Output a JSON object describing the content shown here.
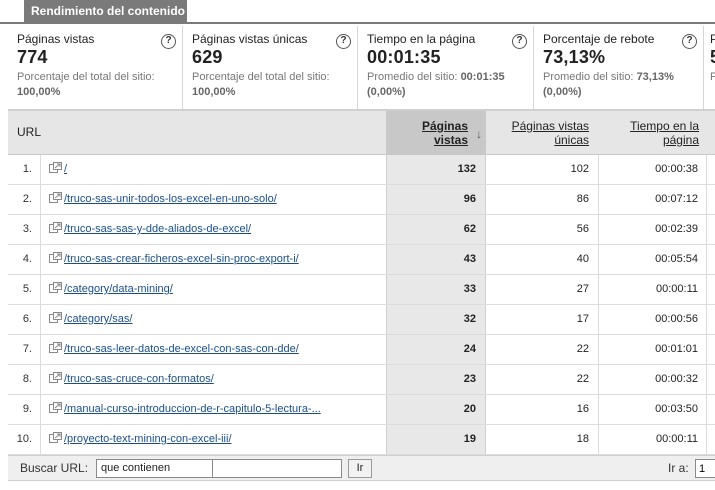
{
  "tab": {
    "title": "Rendimiento del contenido"
  },
  "metrics": [
    {
      "label": "Páginas vistas",
      "value": "774",
      "sub1_prefix": "Porcentaje del total del sitio:",
      "sub2": "100,00%"
    },
    {
      "label": "Páginas vistas únicas",
      "value": "629",
      "sub1_prefix": "Porcentaje del total del sitio:",
      "sub2": "100,00%"
    },
    {
      "label": "Tiempo en la página",
      "value": "00:01:35",
      "sub1_prefix": "Promedio del sitio:",
      "sub1_value": "00:01:35",
      "sub2": "(0,00%)"
    },
    {
      "label": "Porcentaje de rebote",
      "value": "73,13%",
      "sub1_prefix": "Promedio del sitio:",
      "sub1_value": "73,13%",
      "sub2": "(0,00%)"
    },
    {
      "label": "P",
      "value": "5",
      "sub1_prefix": "P",
      "sub2": ""
    }
  ],
  "help_glyph": "?",
  "table": {
    "headers": {
      "url": "URL",
      "pageviews_line1": "Páginas",
      "pageviews_line2": "vistas",
      "unique_line1": "Páginas vistas",
      "unique_line2": "únicas",
      "time_line1": "Tiempo en la",
      "time_line2": "página"
    },
    "sort_indicator": "↓",
    "rows": [
      {
        "idx": "1.",
        "url": "/",
        "pv": "132",
        "uv": "102",
        "t": "00:00:38"
      },
      {
        "idx": "2.",
        "url": "/truco-sas-unir-todos-los-excel-en-uno-solo/",
        "pv": "96",
        "uv": "86",
        "t": "00:07:12"
      },
      {
        "idx": "3.",
        "url": "/truco-sas-sas-y-dde-aliados-de-excel/",
        "pv": "62",
        "uv": "56",
        "t": "00:02:39"
      },
      {
        "idx": "4.",
        "url": "/truco-sas-crear-ficheros-excel-sin-proc-export-i/",
        "pv": "43",
        "uv": "40",
        "t": "00:05:54"
      },
      {
        "idx": "5.",
        "url": "/category/data-mining/",
        "pv": "33",
        "uv": "27",
        "t": "00:00:11"
      },
      {
        "idx": "6.",
        "url": "/category/sas/",
        "pv": "32",
        "uv": "17",
        "t": "00:00:56"
      },
      {
        "idx": "7.",
        "url": "/truco-sas-leer-datos-de-excel-con-sas-con-dde/",
        "pv": "24",
        "uv": "22",
        "t": "00:01:01"
      },
      {
        "idx": "8.",
        "url": "/truco-sas-cruce-con-formatos/",
        "pv": "23",
        "uv": "22",
        "t": "00:00:32"
      },
      {
        "idx": "9.",
        "url": "/manual-curso-introduccion-de-r-capitulo-5-lectura-...",
        "pv": "20",
        "uv": "16",
        "t": "00:03:50"
      },
      {
        "idx": "10.",
        "url": "/proyecto-text-mining-con-excel-iii/",
        "pv": "19",
        "uv": "18",
        "t": "00:00:11"
      }
    ]
  },
  "footer": {
    "search_label": "Buscar URL:",
    "filter_selected": "que contienen",
    "search_value": "",
    "button_label": "Ir",
    "goto_label": "Ir a:",
    "goto_value": "1"
  },
  "colors": {
    "tab_bg": "#7a7a7a",
    "link": "#1a4e8a",
    "sorted_col": "#e8e8e8"
  }
}
